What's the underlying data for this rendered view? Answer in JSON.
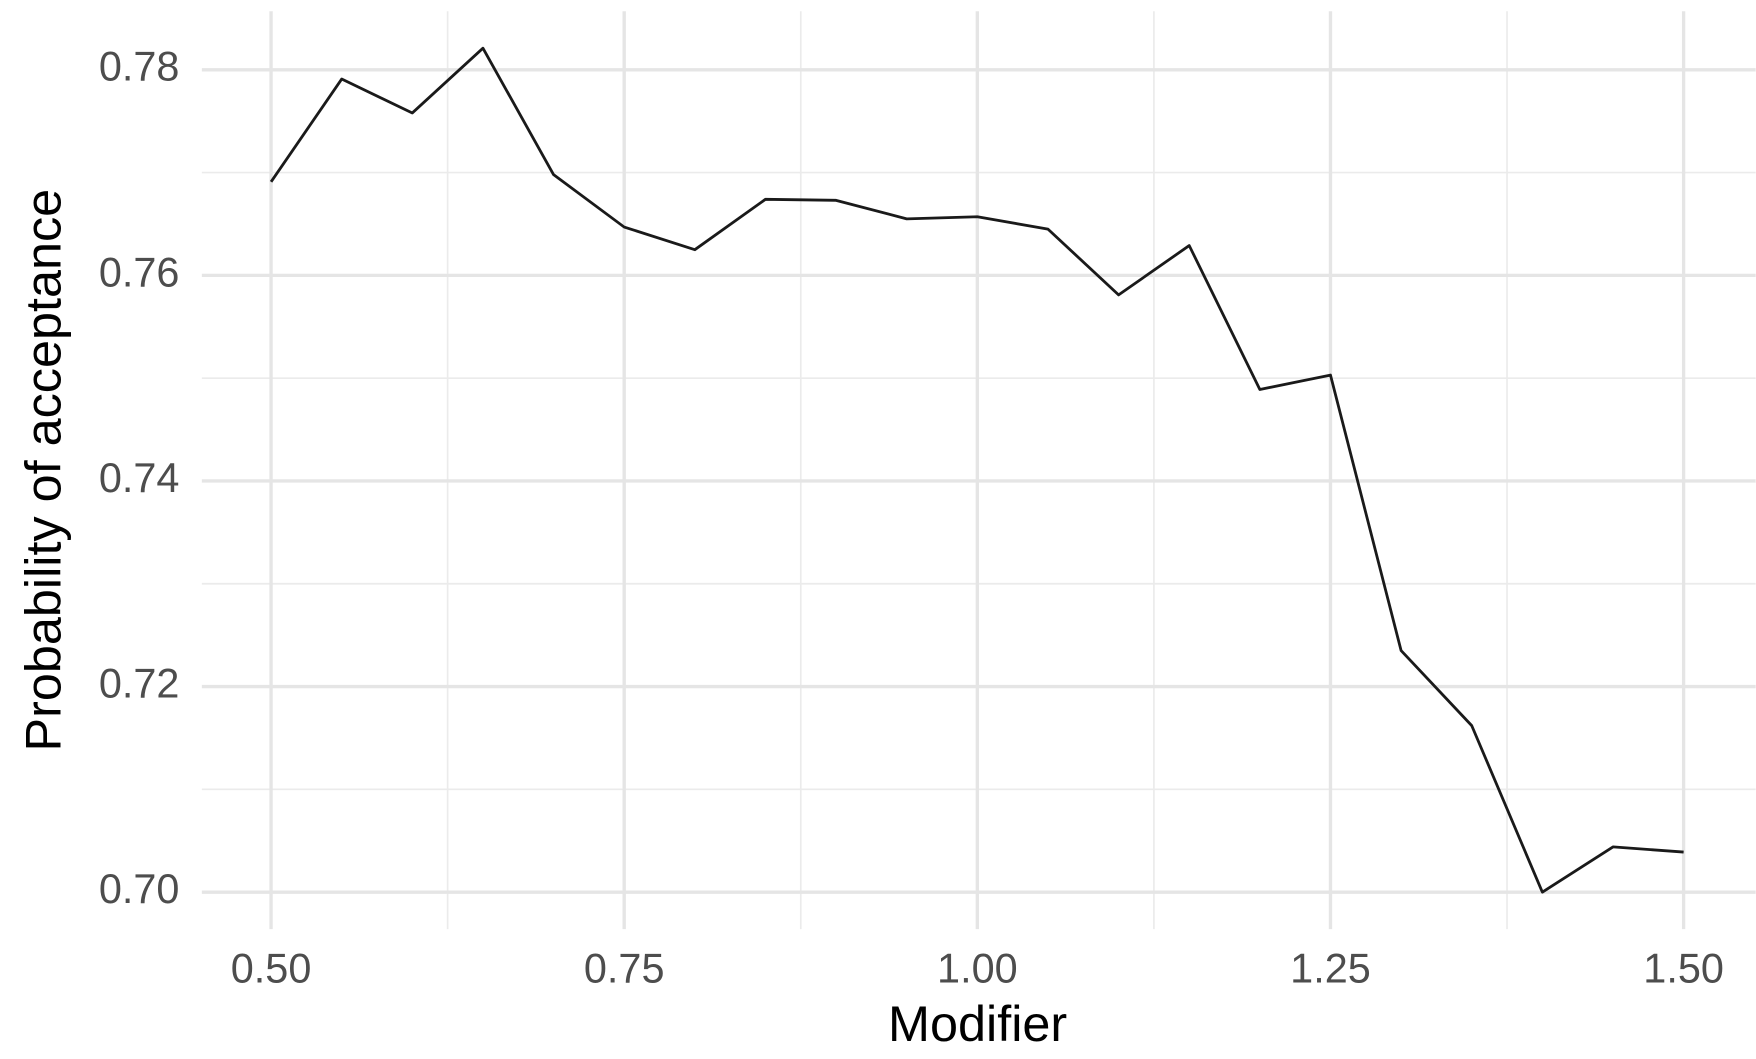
{
  "chart_data": {
    "type": "line",
    "x_label": "Modifier",
    "y_label": "Probability of acceptance",
    "x": [
      0.5,
      0.55,
      0.6,
      0.65,
      0.7,
      0.75,
      0.8,
      0.85,
      0.9,
      0.95,
      1.0,
      1.05,
      1.1,
      1.15,
      1.2,
      1.25,
      1.3,
      1.35,
      1.4,
      1.45,
      1.5
    ],
    "series": [
      {
        "color": "#1a1a1a",
        "values": [
          0.7691,
          0.7791,
          0.7758,
          0.7821,
          0.7698,
          0.7647,
          0.7625,
          0.7674,
          0.7673,
          0.7655,
          0.7657,
          0.7645,
          0.7581,
          0.7629,
          0.7489,
          0.7503,
          0.7235,
          0.7162,
          0.7,
          0.7044,
          0.7039
        ]
      }
    ],
    "xlim": [
      0.451,
      1.551
    ],
    "ylim": [
      0.6964,
      0.7857
    ],
    "xticks": [
      {
        "value": 0.5,
        "label": "0.50"
      },
      {
        "value": 0.75,
        "label": "0.75"
      },
      {
        "value": 1.0,
        "label": "1.00"
      },
      {
        "value": 1.25,
        "label": "1.25"
      },
      {
        "value": 1.5,
        "label": "1.50"
      }
    ],
    "yticks": [
      {
        "value": 0.7,
        "label": "0.70"
      },
      0.72,
      0.74,
      0.76,
      0.78
    ],
    "xminor": [
      0.625,
      0.875,
      1.125,
      1.375
    ],
    "yminor": [
      0.71,
      0.73,
      0.75,
      0.77
    ],
    "grid": true
  }
}
